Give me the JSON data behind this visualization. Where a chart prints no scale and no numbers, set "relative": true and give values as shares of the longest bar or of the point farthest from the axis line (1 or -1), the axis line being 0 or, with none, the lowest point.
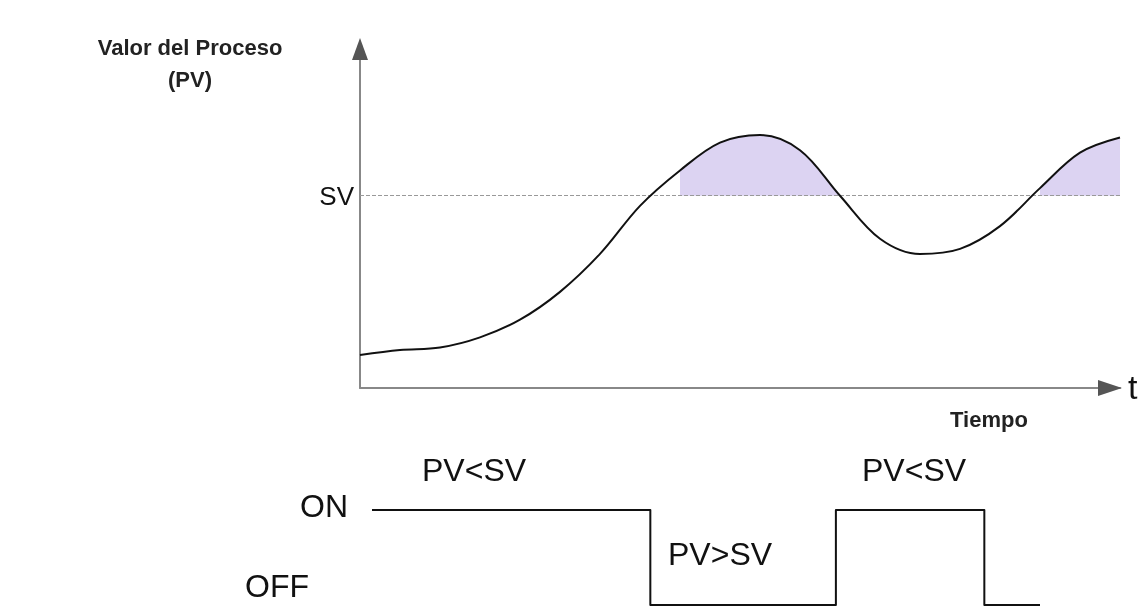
{
  "chart_data": [
    {
      "type": "line",
      "relative": true,
      "ylabel": "Valor del Proceso\n(PV)",
      "xlabel": "Tiempo",
      "annotations": [
        "t"
      ],
      "marker": "none",
      "categories": [
        null,
        null,
        null,
        null,
        null,
        null,
        null,
        null,
        null,
        null,
        null,
        null,
        null,
        null,
        null,
        null,
        null,
        null,
        null,
        null
      ],
      "series": [
        {
          "color": "#111111",
          "values": [
            0.13,
            0.15,
            0.16,
            0.2,
            0.27,
            0.38,
            0.53,
            0.72,
            0.86,
            0.97,
            1.0,
            0.94,
            0.76,
            0.59,
            0.53,
            0.55,
            0.64,
            0.79,
            0.93,
            0.99
          ],
          "lower": [
            null,
            null,
            null,
            null,
            null,
            null,
            null,
            null,
            0.76,
            0.76,
            0.76,
            0.76,
            0.76,
            null,
            null,
            null,
            null,
            0.76,
            0.76,
            0.76
          ],
          "upper": [
            null,
            null,
            null,
            null,
            null,
            null,
            null,
            null,
            0.86,
            0.97,
            1.0,
            0.94,
            0.76,
            null,
            null,
            null,
            null,
            0.79,
            0.93,
            0.99
          ]
        }
      ],
      "ref_lines": [
        {
          "axis": "y",
          "value": 0.76,
          "label": "SV",
          "color": "#999999",
          "line_style": "dashed"
        }
      ]
    },
    {
      "type": "step",
      "relative": true,
      "marker": "none",
      "annotations": [
        "PV<SV",
        "PV<SV",
        "PV>SV",
        "ON",
        "OFF"
      ],
      "categories": [
        null,
        null,
        null,
        null,
        null,
        null,
        null,
        null,
        null,
        null,
        null,
        null,
        null,
        null,
        null,
        null,
        null,
        null,
        null
      ],
      "series": [
        {
          "color": "#111111",
          "values": [
            1,
            1,
            1,
            1,
            1,
            1,
            1,
            1,
            0,
            0,
            0,
            0,
            0,
            1,
            1,
            1,
            1,
            0,
            0
          ]
        }
      ]
    }
  ]
}
